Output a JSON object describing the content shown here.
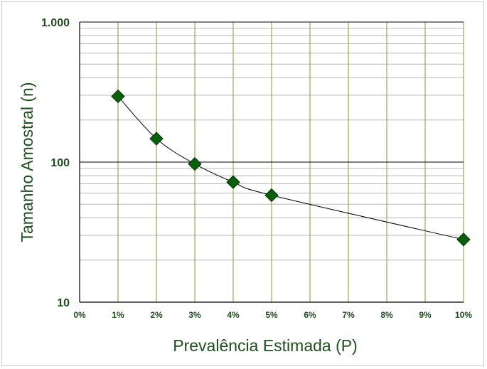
{
  "chart_data": {
    "type": "scatter",
    "title": "",
    "xlabel": "Prevalência Estimada (P)",
    "ylabel": "Tamanho Amostral (n)",
    "y_scale": "log",
    "xlim": [
      0,
      10
    ],
    "ylim": [
      10,
      1000
    ],
    "grid": true,
    "x_ticks": [
      "0%",
      "1%",
      "2%",
      "3%",
      "4%",
      "5%",
      "6%",
      "7%",
      "8%",
      "9%",
      "10%"
    ],
    "y_ticks": [
      "10",
      "100",
      "1.000"
    ],
    "points": [
      {
        "x": 1,
        "y": 295
      },
      {
        "x": 2,
        "y": 147
      },
      {
        "x": 3,
        "y": 97
      },
      {
        "x": 4,
        "y": 72
      },
      {
        "x": 5,
        "y": 58
      },
      {
        "x": 10,
        "y": 28
      }
    ],
    "fit_line": "smooth curve through points",
    "colors": {
      "marker": "#0b5e0b",
      "curve": "#000000",
      "vertical_grid": "#8a9a2a",
      "minor_grid": "#b8b8b8",
      "major_grid": "#000000",
      "text": "#1f4f1f"
    }
  }
}
